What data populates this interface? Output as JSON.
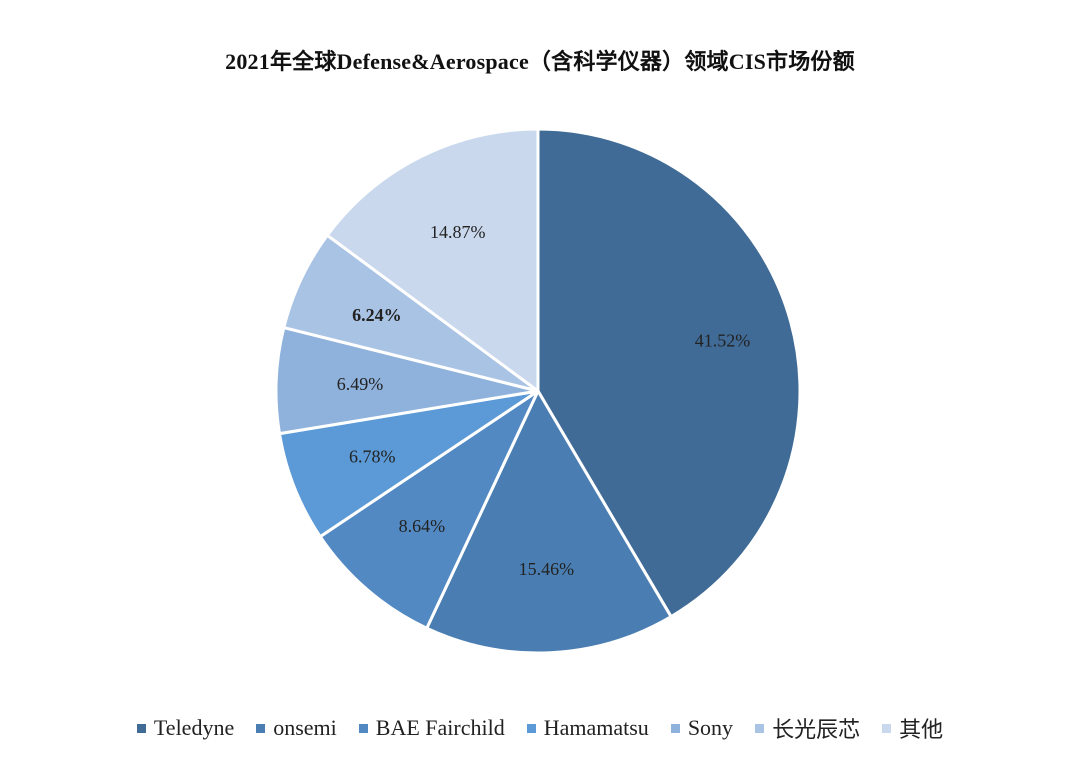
{
  "chart_data": {
    "type": "pie",
    "title": "2021年全球Defense&Aerospace（含科学仪器）领域CIS市场份额",
    "legend_position": "bottom",
    "slices": [
      {
        "name": "Teledyne",
        "value": 41.52,
        "label": "41.52%",
        "color": "#3f6b96",
        "label_color": "#222222",
        "label_bold": false
      },
      {
        "name": "onsemi",
        "value": 15.46,
        "label": "15.46%",
        "color": "#4a7eb2",
        "label_color": "#222222",
        "label_bold": false
      },
      {
        "name": "BAE Fairchild",
        "value": 8.64,
        "label": "8.64%",
        "color": "#5289c3",
        "label_color": "#222222",
        "label_bold": false
      },
      {
        "name": "Hamamatsu",
        "value": 6.78,
        "label": "6.78%",
        "color": "#5b9ad6",
        "label_color": "#222222",
        "label_bold": false
      },
      {
        "name": "Sony",
        "value": 6.49,
        "label": "6.49%",
        "color": "#8fb2dc",
        "label_color": "#222222",
        "label_bold": false
      },
      {
        "name": "长光辰芯",
        "value": 6.24,
        "label": "6.24%",
        "color": "#a9c3e4",
        "label_color": "#c00000",
        "label_bold": true
      },
      {
        "name": "其他",
        "value": 14.87,
        "label": "14.87%",
        "color": "#c9d8ed",
        "label_color": "#222222",
        "label_bold": false
      }
    ]
  }
}
